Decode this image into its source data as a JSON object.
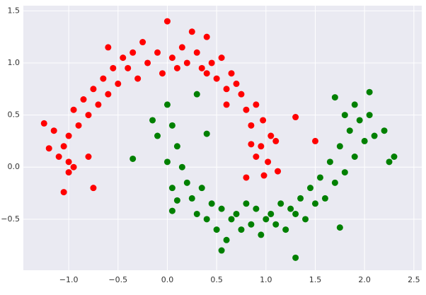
{
  "chart_data": {
    "type": "scatter",
    "series": [
      {
        "color": "#ff0000",
        "x": [
          1.02,
          0.98,
          0.95,
          1.05,
          0.9,
          0.85,
          0.97,
          0.8,
          0.75,
          0.9,
          0.7,
          0.6,
          0.65,
          0.5,
          0.45,
          0.55,
          0.4,
          0.3,
          0.35,
          0.2,
          0.15,
          0.1,
          0.0,
          0.05,
          -0.05,
          -0.1,
          -0.2,
          -0.25,
          -0.3,
          -0.4,
          -0.45,
          -0.5,
          -0.55,
          -0.6,
          -0.65,
          -0.7,
          -0.75,
          -0.8,
          -0.85,
          -0.9,
          -0.95,
          -1.0,
          -1.05,
          -1.1,
          -0.95,
          -1.0,
          -1.15,
          -1.25,
          -1.2,
          -1.05,
          -0.75,
          -0.8,
          1.3,
          1.5,
          0.8,
          0.6,
          0.25,
          -0.35,
          0.4,
          0.85,
          1.1,
          -0.6,
          -1.0,
          1.12
        ],
        "y": [
          0.05,
          -0.08,
          0.2,
          0.3,
          0.1,
          0.4,
          0.45,
          0.55,
          0.7,
          0.6,
          0.8,
          0.75,
          0.9,
          0.85,
          1.0,
          1.05,
          0.9,
          1.1,
          0.95,
          1.0,
          1.15,
          0.95,
          1.4,
          1.05,
          0.9,
          1.1,
          1.0,
          1.2,
          0.85,
          0.95,
          1.05,
          0.8,
          0.95,
          0.7,
          0.85,
          0.6,
          0.75,
          0.5,
          0.65,
          0.4,
          0.55,
          0.3,
          0.2,
          0.1,
          0.0,
          -0.05,
          0.35,
          0.42,
          0.18,
          -0.24,
          -0.2,
          0.1,
          0.48,
          0.25,
          -0.1,
          0.6,
          1.3,
          1.1,
          1.25,
          0.22,
          0.25,
          1.15,
          0.05,
          -0.04
        ]
      },
      {
        "color": "#008000",
        "x": [
          0.0,
          0.05,
          -0.1,
          -0.15,
          0.1,
          0.0,
          0.15,
          0.05,
          0.2,
          0.1,
          0.25,
          0.3,
          0.35,
          0.4,
          0.45,
          0.5,
          0.55,
          0.6,
          0.65,
          0.7,
          0.75,
          0.8,
          0.85,
          0.9,
          0.95,
          1.0,
          1.05,
          1.1,
          1.15,
          1.2,
          1.25,
          1.3,
          1.3,
          1.35,
          1.4,
          1.45,
          1.5,
          1.55,
          1.6,
          1.65,
          1.7,
          1.75,
          1.8,
          1.85,
          1.9,
          1.95,
          2.0,
          2.05,
          2.1,
          1.8,
          1.9,
          1.7,
          2.05,
          2.2,
          2.3,
          2.25,
          1.75,
          0.55,
          -0.35,
          0.4,
          0.3,
          0.05
        ],
        "y": [
          0.6,
          0.4,
          0.3,
          0.45,
          0.2,
          0.05,
          0.0,
          -0.2,
          -0.15,
          -0.32,
          -0.3,
          -0.45,
          -0.2,
          -0.5,
          -0.35,
          -0.6,
          -0.4,
          -0.7,
          -0.5,
          -0.45,
          -0.6,
          -0.35,
          -0.55,
          -0.4,
          -0.65,
          -0.5,
          -0.45,
          -0.55,
          -0.35,
          -0.6,
          -0.4,
          -0.45,
          -0.87,
          -0.3,
          -0.5,
          -0.2,
          -0.35,
          -0.1,
          -0.3,
          0.05,
          -0.15,
          0.2,
          -0.05,
          0.35,
          0.1,
          0.45,
          0.25,
          0.5,
          0.3,
          0.5,
          0.6,
          0.67,
          0.72,
          0.35,
          0.1,
          0.05,
          -0.58,
          -0.8,
          0.08,
          0.32,
          0.7,
          -0.42
        ]
      }
    ],
    "xlim": [
      -1.46,
      2.58
    ],
    "ylim": [
      -0.99,
      1.55
    ],
    "xticks": [
      {
        "value": -1.0,
        "label": "−1.0"
      },
      {
        "value": -0.5,
        "label": "−0.5"
      },
      {
        "value": 0.0,
        "label": "0.0"
      },
      0.5,
      {
        "value": 1.0,
        "label": "1.0"
      },
      1.5,
      {
        "value": 2.0,
        "label": "2.0"
      },
      2.5
    ],
    "yticks": [
      {
        "value": -0.5,
        "label": "−0.5"
      },
      {
        "value": 0.0,
        "label": "0.0"
      },
      0.5,
      {
        "value": 1.0,
        "label": "1.0"
      },
      1.5
    ],
    "grid": true
  }
}
